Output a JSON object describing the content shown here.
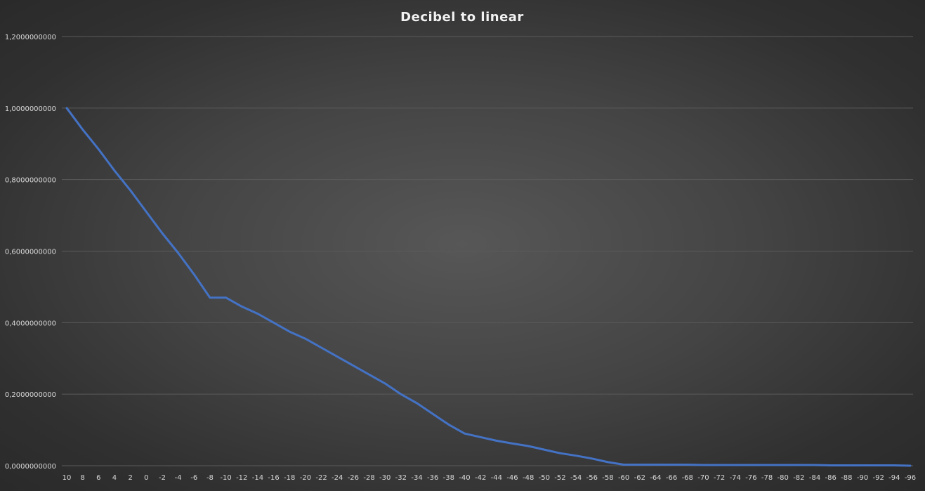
{
  "chart_data": {
    "type": "line",
    "title": "Decibel to linear",
    "xlabel": "",
    "ylabel": "",
    "ylim": [
      0,
      1.2
    ],
    "grid": true,
    "legend": "none",
    "y_ticks": [
      "0,0000000000",
      "0,2000000000",
      "0,4000000000",
      "0,6000000000",
      "0,8000000000",
      "1,0000000000",
      "1,2000000000"
    ],
    "categories": [
      "10",
      "8",
      "6",
      "4",
      "2",
      "0",
      "-2",
      "-4",
      "-6",
      "-8",
      "-10",
      "-12",
      "-14",
      "-16",
      "-18",
      "-20",
      "-22",
      "-24",
      "-26",
      "-28",
      "-30",
      "-32",
      "-34",
      "-36",
      "-38",
      "-40",
      "-42",
      "-44",
      "-46",
      "-48",
      "-50",
      "-52",
      "-54",
      "-56",
      "-58",
      "-60",
      "-62",
      "-64",
      "-66",
      "-68",
      "-70",
      "-72",
      "-74",
      "-76",
      "-78",
      "-80",
      "-82",
      "-84",
      "-86",
      "-88",
      "-90",
      "-92",
      "-94",
      "-96"
    ],
    "series": [
      {
        "color": "#4472c4",
        "values": [
          1.0,
          0.94,
          0.885,
          0.825,
          0.77,
          0.71,
          0.65,
          0.595,
          0.535,
          0.47,
          0.47,
          0.445,
          0.425,
          0.4,
          0.375,
          0.355,
          0.33,
          0.305,
          0.28,
          0.255,
          0.23,
          0.2,
          0.175,
          0.145,
          0.115,
          0.09,
          0.08,
          0.07,
          0.062,
          0.055,
          0.045,
          0.035,
          0.028,
          0.02,
          0.01,
          0.003,
          0.003,
          0.003,
          0.003,
          0.003,
          0.002,
          0.002,
          0.002,
          0.002,
          0.002,
          0.002,
          0.002,
          0.002,
          0.001,
          0.001,
          0.001,
          0.001,
          0.001,
          0.0
        ]
      }
    ]
  }
}
